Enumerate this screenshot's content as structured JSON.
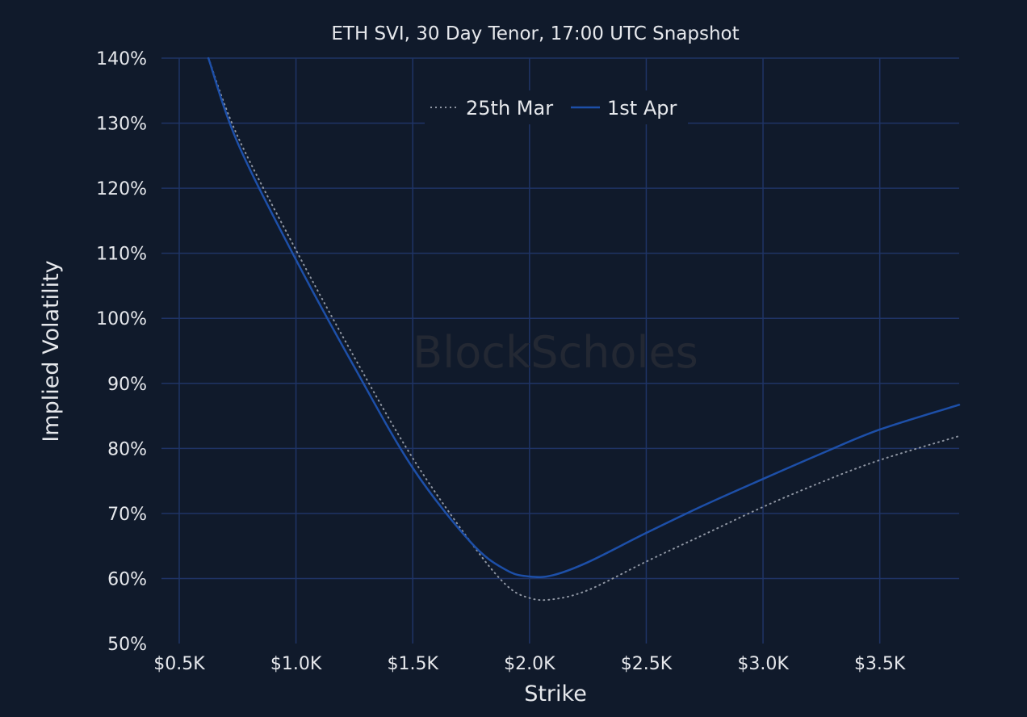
{
  "chart_data": {
    "type": "line",
    "title": "ETH SVI, 30 Day Tenor, 17:00 UTC Snapshot",
    "xlabel": "Strike",
    "ylabel": "Implied Volatility",
    "xlim": [
      0.424,
      3.84
    ],
    "ylim": [
      50,
      140
    ],
    "x_unit": "K USD",
    "y_unit": "%",
    "grid": true,
    "legend_position": "top-center",
    "watermark": "BlockScholes",
    "x_ticks": [
      {
        "value": 0.5,
        "label": "$0.5K"
      },
      {
        "value": 1.0,
        "label": "$1.0K"
      },
      {
        "value": 1.5,
        "label": "$1.5K"
      },
      {
        "value": 2.0,
        "label": "$2.0K"
      },
      {
        "value": 2.5,
        "label": "$2.5K"
      },
      {
        "value": 3.0,
        "label": "$3.0K"
      },
      {
        "value": 3.5,
        "label": "$3.5K"
      }
    ],
    "y_ticks": [
      {
        "value": 50,
        "label": "50%"
      },
      {
        "value": 60,
        "label": "60%"
      },
      {
        "value": 70,
        "label": "70%"
      },
      {
        "value": 80,
        "label": "80%"
      },
      {
        "value": 90,
        "label": "90%"
      },
      {
        "value": 100,
        "label": "100%"
      },
      {
        "value": 110,
        "label": "110%"
      },
      {
        "value": 120,
        "label": "120%"
      },
      {
        "value": 130,
        "label": "130%"
      },
      {
        "value": 140,
        "label": "140%"
      }
    ],
    "series": [
      {
        "name": "25th Mar",
        "color": "#8f96a3",
        "style": "dotted",
        "points": [
          [
            0.625,
            140
          ],
          [
            0.75,
            128
          ],
          [
            1.0,
            110.5
          ],
          [
            1.25,
            94
          ],
          [
            1.5,
            78.5
          ],
          [
            1.75,
            65.5
          ],
          [
            1.9,
            59
          ],
          [
            2.0,
            57
          ],
          [
            2.1,
            56.8
          ],
          [
            2.25,
            58.2
          ],
          [
            2.5,
            62.6
          ],
          [
            2.75,
            66.8
          ],
          [
            3.0,
            71
          ],
          [
            3.25,
            74.8
          ],
          [
            3.5,
            78.2
          ],
          [
            3.84,
            81.9
          ]
        ]
      },
      {
        "name": "1st Apr",
        "color": "#1d4fa8",
        "style": "solid",
        "points": [
          [
            0.625,
            140
          ],
          [
            0.75,
            127
          ],
          [
            1.0,
            109
          ],
          [
            1.25,
            92.5
          ],
          [
            1.5,
            77
          ],
          [
            1.75,
            65.5
          ],
          [
            1.9,
            61.3
          ],
          [
            2.0,
            60.3
          ],
          [
            2.1,
            60.5
          ],
          [
            2.25,
            62.5
          ],
          [
            2.5,
            67
          ],
          [
            2.75,
            71.3
          ],
          [
            3.0,
            75.3
          ],
          [
            3.25,
            79.2
          ],
          [
            3.5,
            82.9
          ],
          [
            3.84,
            86.7
          ]
        ]
      }
    ]
  }
}
